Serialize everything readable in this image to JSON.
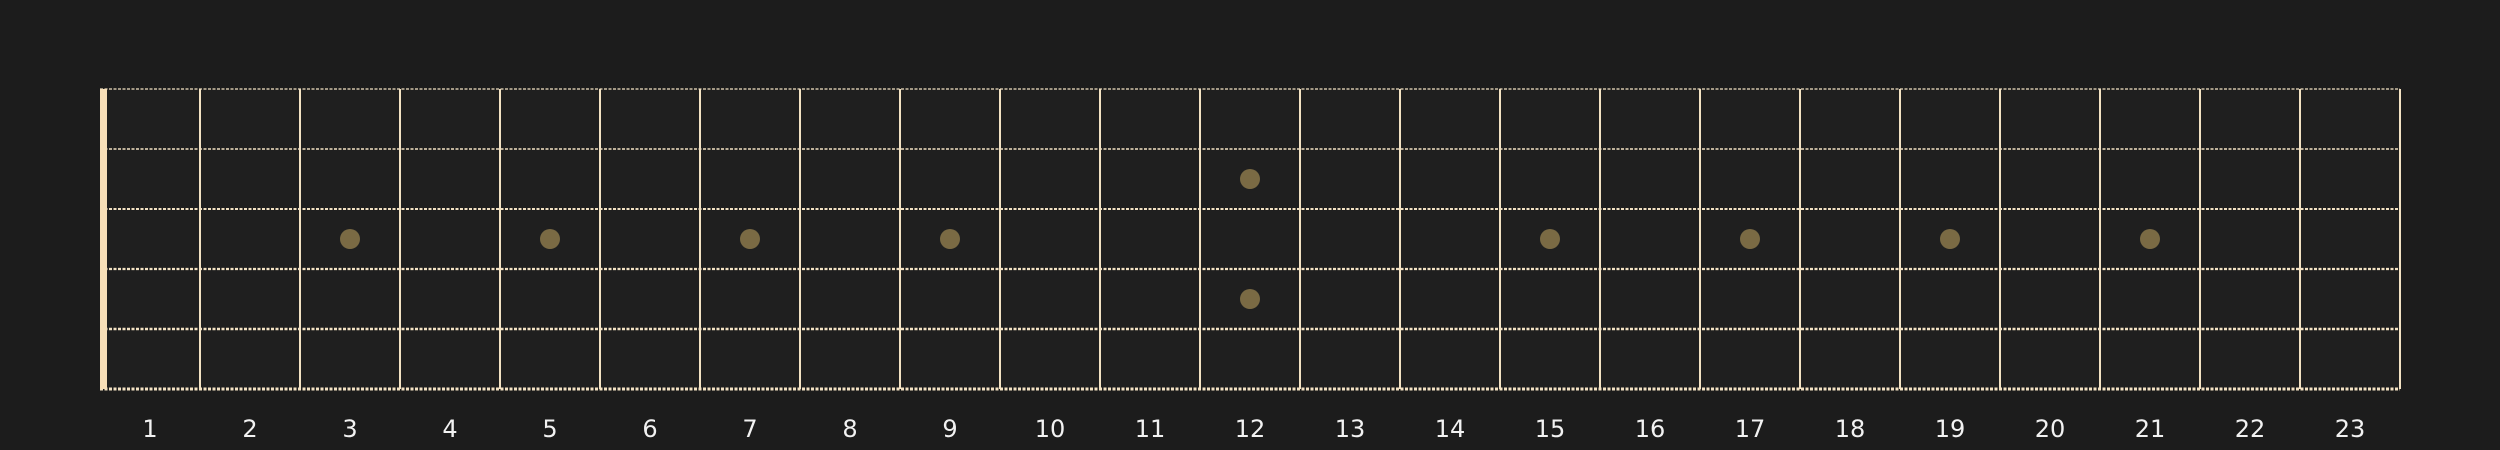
{
  "fretboard": {
    "fret_count": 23,
    "string_count": 6,
    "fret_numbers": [
      "1",
      "2",
      "3",
      "4",
      "5",
      "6",
      "7",
      "8",
      "9",
      "10",
      "11",
      "12",
      "13",
      "14",
      "15",
      "16",
      "17",
      "18",
      "19",
      "20",
      "21",
      "22",
      "23"
    ],
    "single_inlays": [
      3,
      5,
      7,
      9,
      15,
      17,
      19,
      21
    ],
    "double_inlays": [
      12
    ],
    "colors": {
      "background": "#1c1c1c",
      "fretboard": "#1f1f1f",
      "lines": "#f3e2c3",
      "nut": "#f7dfb8",
      "inlay": "#7a6a44",
      "label": "#f2f2f2"
    }
  }
}
